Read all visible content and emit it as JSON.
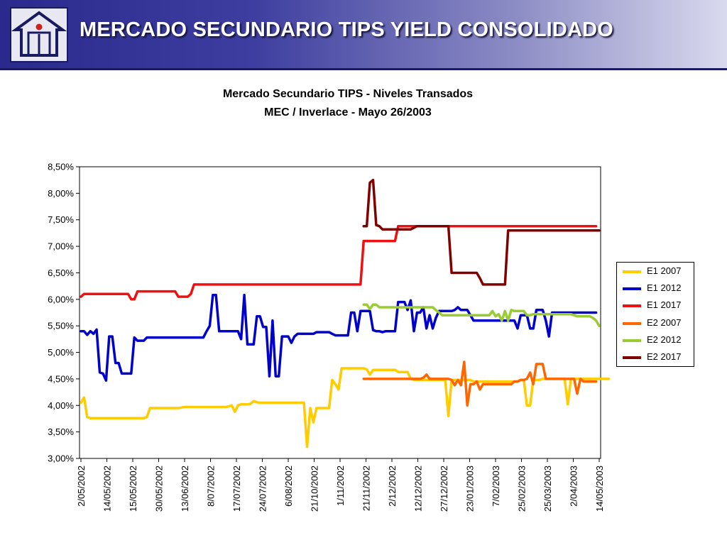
{
  "header": {
    "title": "MERCADO SECUNDARIO TIPS YIELD CONSOLIDADO",
    "logo_icon": "house-info-icon"
  },
  "chart_data": {
    "type": "line",
    "title": "Mercado Secundario TIPS - Niveles Transados",
    "subtitle": "MEC / Inverlace - Mayo 26/2003",
    "xlabel": "",
    "ylabel": "",
    "ylim": [
      0.03,
      0.085
    ],
    "yticks": [
      0.03,
      0.035,
      0.04,
      0.045,
      0.05,
      0.055,
      0.06,
      0.065,
      0.07,
      0.075,
      0.08,
      0.085
    ],
    "ytick_labels": [
      "3,00%",
      "3,50%",
      "4,00%",
      "4,50%",
      "5,00%",
      "5,50%",
      "6,00%",
      "6,50%",
      "7,00%",
      "7,50%",
      "8,00%",
      "8,50%"
    ],
    "xlim": [
      "2002-05-02",
      "2003-05-26"
    ],
    "x_tick_labels": [
      "2/05/2002",
      "14/05/2002",
      "15/05/2002",
      "30/05/2002",
      "13/06/2002",
      "8/07/2002",
      "17/07/2002",
      "24/07/2002",
      "6/08/2002",
      "21/10/2002",
      "1/11/2002",
      "21/11/2002",
      "2/12/2002",
      "12/12/2002",
      "27/12/2002",
      "23/01/2003",
      "7/02/2003",
      "25/02/2003",
      "25/03/2003",
      "2/04/2003",
      "14/05/2003"
    ],
    "grid": false,
    "legend_position": "right",
    "series": [
      {
        "name": "E1 2007",
        "color": "#FFCC00",
        "start": 0,
        "values": [
          0.0405,
          0.0415,
          0.0378,
          0.0376,
          0.0376,
          0.0376,
          0.0376,
          0.0376,
          0.0376,
          0.0376,
          0.0376,
          0.0376,
          0.0376,
          0.0376,
          0.0376,
          0.0376,
          0.0376,
          0.0376,
          0.0376,
          0.0376,
          0.0376,
          0.0378,
          0.0395,
          0.0395,
          0.0395,
          0.0395,
          0.0395,
          0.0395,
          0.0395,
          0.0395,
          0.0395,
          0.0395,
          0.0396,
          0.0397,
          0.0397,
          0.0397,
          0.0397,
          0.0397,
          0.0397,
          0.0397,
          0.0397,
          0.0397,
          0.0397,
          0.0397,
          0.0397,
          0.0397,
          0.0397,
          0.0398,
          0.04,
          0.0388,
          0.04,
          0.0402,
          0.0402,
          0.0402,
          0.0403,
          0.0408,
          0.0406,
          0.0405,
          0.0405,
          0.0405,
          0.0405,
          0.0405,
          0.0405,
          0.0405,
          0.0405,
          0.0405,
          0.0405,
          0.0405,
          0.0405,
          0.0405,
          0.0405,
          0.0405,
          0.0322,
          0.0395,
          0.0368,
          0.0395,
          0.0395,
          0.0395,
          0.0395,
          0.0395,
          0.0448,
          0.044,
          0.043,
          0.047,
          0.047,
          0.047,
          0.047,
          0.047,
          0.047,
          0.047,
          0.047,
          0.0468,
          0.0458,
          0.0467,
          0.0467,
          0.0467,
          0.0467,
          0.0467,
          0.0467,
          0.0467,
          0.0467,
          0.0463,
          0.0463,
          0.0463,
          0.0463,
          0.045,
          0.0448,
          0.0448,
          0.0448,
          0.0448,
          0.0448,
          0.0448,
          0.0448,
          0.0448,
          0.0448,
          0.0448,
          0.0448,
          0.038,
          0.0448,
          0.0448,
          0.0448,
          0.0448,
          0.0448,
          0.0448,
          0.0448,
          0.0445,
          0.0445,
          0.0445,
          0.0445,
          0.0445,
          0.0445,
          0.0445,
          0.0445,
          0.0445,
          0.0445,
          0.0445,
          0.0445,
          0.0445,
          0.0445,
          0.0445,
          0.0448,
          0.0448,
          0.04,
          0.04,
          0.0448,
          0.0448,
          0.0448,
          0.045,
          0.045,
          0.045,
          0.045,
          0.045,
          0.045,
          0.045,
          0.045,
          0.0402,
          0.045,
          0.045,
          0.045,
          0.045,
          0.045,
          0.045,
          0.045,
          0.045,
          0.045,
          0.045,
          0.045,
          0.045,
          0.045
        ]
      },
      {
        "name": "E1 2012",
        "color": "#0000CC",
        "start": 0,
        "values": [
          0.054,
          0.054,
          0.0533,
          0.054,
          0.0535,
          0.0543,
          0.0462,
          0.046,
          0.0447,
          0.053,
          0.053,
          0.048,
          0.048,
          0.046,
          0.046,
          0.046,
          0.046,
          0.0528,
          0.0522,
          0.0522,
          0.0522,
          0.0528,
          0.0528,
          0.0528,
          0.0528,
          0.0528,
          0.0528,
          0.0528,
          0.0528,
          0.0528,
          0.0528,
          0.0528,
          0.0528,
          0.0528,
          0.0528,
          0.0528,
          0.0528,
          0.0528,
          0.0528,
          0.0528,
          0.054,
          0.055,
          0.0608,
          0.0608,
          0.054,
          0.054,
          0.054,
          0.054,
          0.054,
          0.054,
          0.054,
          0.0525,
          0.0608,
          0.0515,
          0.0515,
          0.0515,
          0.0568,
          0.0568,
          0.0548,
          0.0548,
          0.0455,
          0.056,
          0.0455,
          0.0455,
          0.053,
          0.053,
          0.053,
          0.0518,
          0.053,
          0.0535,
          0.0535,
          0.0535,
          0.0535,
          0.0535,
          0.0535,
          0.0538,
          0.0538,
          0.0538,
          0.0538,
          0.0538,
          0.0535,
          0.0532,
          0.0532,
          0.0532,
          0.0532,
          0.0532,
          0.0575,
          0.0575,
          0.054,
          0.0578,
          0.0578,
          0.0578,
          0.0578,
          0.0542,
          0.054,
          0.054,
          0.0538,
          0.054,
          0.054,
          0.054,
          0.054,
          0.0595,
          0.0595,
          0.0595,
          0.058,
          0.0598,
          0.054,
          0.0575,
          0.0575,
          0.0585,
          0.0545,
          0.057,
          0.0545,
          0.0565,
          0.0578,
          0.0578,
          0.0578,
          0.0578,
          0.0578,
          0.058,
          0.0585,
          0.058,
          0.058,
          0.058,
          0.057,
          0.056,
          0.056,
          0.056,
          0.056,
          0.056,
          0.056,
          0.056,
          0.056,
          0.056,
          0.056,
          0.056,
          0.056,
          0.056,
          0.056,
          0.0545,
          0.057,
          0.057,
          0.057,
          0.0545,
          0.0545,
          0.058,
          0.058,
          0.058,
          0.056,
          0.053,
          0.0575,
          0.0575,
          0.0575,
          0.0575,
          0.0575,
          0.0575,
          0.0575,
          0.0575,
          0.0575,
          0.0575,
          0.0575,
          0.0575,
          0.0575,
          0.0575,
          0.0575
        ]
      },
      {
        "name": "E1 2017",
        "color": "#EE1111",
        "start": 0,
        "values": [
          0.0605,
          0.061,
          0.061,
          0.061,
          0.061,
          0.061,
          0.061,
          0.061,
          0.061,
          0.061,
          0.061,
          0.061,
          0.061,
          0.061,
          0.061,
          0.061,
          0.06,
          0.06,
          0.0615,
          0.0615,
          0.0615,
          0.0615,
          0.0615,
          0.0615,
          0.0615,
          0.0615,
          0.0615,
          0.0615,
          0.0615,
          0.0615,
          0.0615,
          0.0605,
          0.0605,
          0.0605,
          0.0605,
          0.061,
          0.0628,
          0.0628,
          0.0628,
          0.0628,
          0.0628,
          0.0628,
          0.0628,
          0.0628,
          0.0628,
          0.0628,
          0.0628,
          0.0628,
          0.0628,
          0.0628,
          0.0628,
          0.0628,
          0.0628,
          0.0628,
          0.0628,
          0.0628,
          0.0628,
          0.0628,
          0.0628,
          0.0628,
          0.0628,
          0.0628,
          0.0628,
          0.0628,
          0.0628,
          0.0628,
          0.0628,
          0.0628,
          0.0628,
          0.0628,
          0.0628,
          0.0628,
          0.0628,
          0.0628,
          0.0628,
          0.0628,
          0.0628,
          0.0628,
          0.0628,
          0.0628,
          0.0628,
          0.0628,
          0.0628,
          0.0628,
          0.0628,
          0.0628,
          0.0628,
          0.0628,
          0.0628,
          0.0628,
          0.071,
          0.071,
          0.071,
          0.071,
          0.071,
          0.071,
          0.071,
          0.071,
          0.071,
          0.071,
          0.071,
          0.0738,
          0.0738,
          0.0738,
          0.0738,
          0.0738,
          0.0738,
          0.0738,
          0.0738,
          0.0738,
          0.0738,
          0.0738,
          0.0738,
          0.0738,
          0.0738,
          0.0738,
          0.0738,
          0.0738,
          0.0738,
          0.0738,
          0.0738,
          0.0738,
          0.0738,
          0.0738,
          0.0738,
          0.0738,
          0.0738,
          0.0738,
          0.0738,
          0.0738,
          0.0738,
          0.0738,
          0.0738,
          0.0738,
          0.0738,
          0.0738,
          0.0738,
          0.0738,
          0.0738,
          0.0738,
          0.0738,
          0.0738,
          0.0738,
          0.0738,
          0.0738,
          0.0738,
          0.0738,
          0.0738,
          0.0738,
          0.0738,
          0.0738,
          0.0738,
          0.0738,
          0.0738,
          0.0738,
          0.0738,
          0.0738,
          0.0738,
          0.0738,
          0.0738,
          0.0738,
          0.0738,
          0.0738,
          0.0738,
          0.0738
        ]
      },
      {
        "name": "E2 2007",
        "color": "#FF6600",
        "start": 90,
        "values": [
          0.045,
          0.045,
          0.045,
          0.045,
          0.045,
          0.045,
          0.045,
          0.045,
          0.045,
          0.045,
          0.045,
          0.045,
          0.045,
          0.045,
          0.045,
          0.045,
          0.045,
          0.045,
          0.045,
          0.0452,
          0.0458,
          0.045,
          0.045,
          0.045,
          0.045,
          0.045,
          0.045,
          0.045,
          0.0448,
          0.0438,
          0.0448,
          0.0438,
          0.0482,
          0.04,
          0.044,
          0.044,
          0.0445,
          0.043,
          0.044,
          0.044,
          0.044,
          0.044,
          0.044,
          0.044,
          0.044,
          0.044,
          0.044,
          0.044,
          0.0445,
          0.0445,
          0.0448,
          0.0448,
          0.045,
          0.0462,
          0.044,
          0.0478,
          0.0478,
          0.0478,
          0.045,
          0.045,
          0.045,
          0.045,
          0.045,
          0.045,
          0.045,
          0.045,
          0.045,
          0.045,
          0.0422,
          0.045,
          0.0445,
          0.0445,
          0.0445,
          0.0445,
          0.0445
        ]
      },
      {
        "name": "E2 2012",
        "color": "#99CC33",
        "start": 90,
        "values": [
          0.059,
          0.059,
          0.0582,
          0.059,
          0.059,
          0.0585,
          0.0585,
          0.0585,
          0.0585,
          0.0585,
          0.0585,
          0.0585,
          0.0585,
          0.0585,
          0.0585,
          0.0585,
          0.0585,
          0.0585,
          0.0585,
          0.0585,
          0.0585,
          0.0585,
          0.0585,
          0.058,
          0.0575,
          0.057,
          0.057,
          0.057,
          0.057,
          0.057,
          0.057,
          0.057,
          0.057,
          0.057,
          0.057,
          0.057,
          0.057,
          0.057,
          0.057,
          0.057,
          0.057,
          0.0578,
          0.0568,
          0.0572,
          0.056,
          0.0578,
          0.056,
          0.058,
          0.0578,
          0.0578,
          0.0578,
          0.0578,
          0.057,
          0.057,
          0.0572,
          0.0572,
          0.0572,
          0.0572,
          0.0572,
          0.0572,
          0.0572,
          0.0572,
          0.0572,
          0.0572,
          0.0572,
          0.0572,
          0.0572,
          0.057,
          0.0568,
          0.0568,
          0.0568,
          0.0568,
          0.0568,
          0.0565,
          0.056,
          0.055
        ]
      },
      {
        "name": "E2 2017",
        "color": "#800000",
        "start": 90,
        "values": [
          0.0738,
          0.0738,
          0.082,
          0.0825,
          0.074,
          0.0738,
          0.0732,
          0.0732,
          0.0732,
          0.0732,
          0.0732,
          0.0732,
          0.0732,
          0.0732,
          0.0732,
          0.0732,
          0.0735,
          0.0738,
          0.0738,
          0.0738,
          0.0738,
          0.0738,
          0.0738,
          0.0738,
          0.0738,
          0.0738,
          0.0738,
          0.0738,
          0.065,
          0.065,
          0.065,
          0.065,
          0.065,
          0.065,
          0.065,
          0.065,
          0.065,
          0.064,
          0.0628,
          0.0628,
          0.0628,
          0.0628,
          0.0628,
          0.0628,
          0.0628,
          0.0628,
          0.073,
          0.073,
          0.073,
          0.073,
          0.073,
          0.073,
          0.073,
          0.073,
          0.073,
          0.073,
          0.073,
          0.073,
          0.073,
          0.073,
          0.073,
          0.073,
          0.073,
          0.073,
          0.073,
          0.073,
          0.073,
          0.073,
          0.073,
          0.073,
          0.073,
          0.073,
          0.073,
          0.073,
          0.073,
          0.073
        ]
      }
    ]
  }
}
